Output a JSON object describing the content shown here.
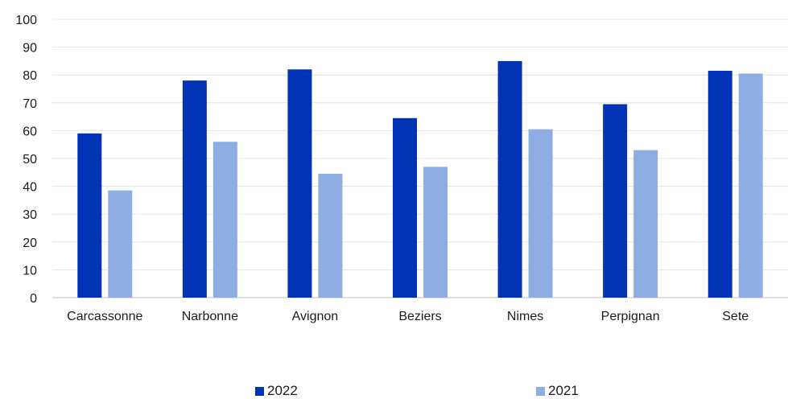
{
  "chart_data": {
    "type": "bar",
    "title": "",
    "xlabel": "",
    "ylabel": "",
    "categories": [
      "Carcassonne",
      "Narbonne",
      "Avignon",
      "Beziers",
      "Nimes",
      "Perpignan",
      "Sete"
    ],
    "series": [
      {
        "name": "2022",
        "color": "#0033b5",
        "values": [
          59,
          78,
          82,
          64.5,
          85,
          69.5,
          81.5
        ]
      },
      {
        "name": "2021",
        "color": "#8eaee3",
        "values": [
          38.5,
          56,
          44.5,
          47,
          60.5,
          53,
          80.5
        ]
      }
    ],
    "ylim": [
      0,
      100
    ],
    "yticks": [
      0,
      10,
      20,
      30,
      40,
      50,
      60,
      70,
      80,
      90,
      100
    ],
    "grid": true,
    "legend_position": "bottom"
  }
}
